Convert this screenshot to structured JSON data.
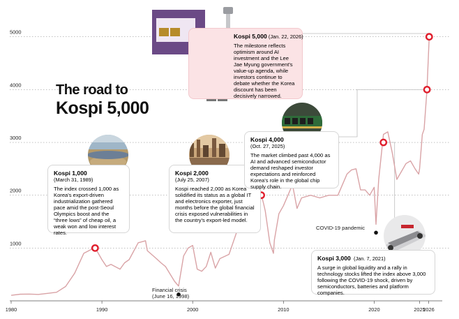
{
  "title": {
    "line1": "The road to",
    "line2": "Kospi 5,000"
  },
  "chart_data": {
    "type": "line",
    "title": "The road to Kospi 5,000",
    "xlim": [
      1980,
      2027.5
    ],
    "ylim": [
      0,
      5300
    ],
    "x_ticks": [
      1980,
      1990,
      2000,
      2010,
      2020,
      2025,
      2026
    ],
    "x_tick_labels": [
      "1980",
      "1990",
      "2000",
      "2010",
      "2020",
      "2025",
      "2026"
    ],
    "y_ticks": [
      1000,
      2000,
      3000,
      4000,
      5000
    ],
    "y_tick_labels": [
      "1000",
      "2000",
      "3000",
      "4000",
      "5000"
    ],
    "grid": "horizontal-dashed",
    "line_color": "#d9a3a6",
    "marker_color": "#e01f2d",
    "series": [
      {
        "x": [
          1980,
          1981,
          1982,
          1983,
          1984,
          1985,
          1986,
          1987,
          1988,
          1989.2,
          1989.5,
          1990,
          1990.5,
          1991,
          1992,
          1992.5,
          1993,
          1994,
          1994.8,
          1995,
          1996,
          1996.5,
          1997,
          1997.5,
          1998,
          1998.45,
          1999,
          1999.5,
          2000,
          2000.5,
          2001,
          2001.5,
          2002,
          2002.5,
          2003,
          2004,
          2005,
          2006,
          2007,
          2007.56,
          2007.8,
          2008,
          2008.5,
          2008.9,
          2009,
          2009.5,
          2010,
          2010.5,
          2011,
          2011.5,
          2012,
          2013,
          2014,
          2015,
          2016,
          2017,
          2017.5,
          2018,
          2018.5,
          2019,
          2019.5,
          2020,
          2020.2,
          2020.5,
          2021.02,
          2021.5,
          2022,
          2022.5,
          2023,
          2023.5,
          2024,
          2024.5,
          2024.9,
          2025,
          2025.3,
          2025.5,
          2025.82,
          2026.06
        ],
        "y": [
          105,
          125,
          128,
          121,
          142,
          163,
          272,
          525,
          900,
          1007,
          930,
          780,
          650,
          690,
          600,
          720,
          780,
          1100,
          1138,
          950,
          800,
          720,
          650,
          510,
          370,
          280,
          850,
          1000,
          1050,
          600,
          560,
          650,
          920,
          620,
          800,
          880,
          1380,
          1430,
          1800,
          2005,
          1850,
          1700,
          1100,
          900,
          1150,
          1650,
          1800,
          2000,
          2200,
          1750,
          1950,
          2000,
          1950,
          2000,
          2000,
          2400,
          2480,
          2500,
          2100,
          2100,
          2000,
          2150,
          1450,
          2300,
          3152,
          3200,
          2800,
          2300,
          2450,
          2600,
          2650,
          2500,
          2400,
          2500,
          3150,
          3250,
          4000,
          5000
        ]
      }
    ],
    "milestones": [
      {
        "label": "Kospi 1,000",
        "date": "(March 31, 1989)",
        "x": 1989.25,
        "y": 1000,
        "text": "The index crossed 1,000 as Korea's export-driven industrialization gathered pace amid the post-Seoul Olympics boost and the “three lows” of cheap oil, a weak won and low interest rates."
      },
      {
        "label": "Kospi 2,000",
        "date": "(July 25, 2007)",
        "x": 2007.56,
        "y": 2000,
        "text": "Kospi reached 2,000 as Korea solidified its status as a global IT and electronics exporter, just months before the global financial crisis exposed vulnerabilities in the country's export-led model."
      },
      {
        "label": "Kospi 3,000",
        "date": "(Jan. 7, 2021)",
        "x": 2021.02,
        "y": 3000,
        "text": "A surge in global liquidity and a rally in technology stocks lifted the index above 3,000 following the COVID-19 shock, driven by semiconductors, batteries and platform companies."
      },
      {
        "label": "Kospi 4,000",
        "date": "(Oct. 27, 2025)",
        "x": 2025.82,
        "y": 4000,
        "text": "The market climbed past 4,000 as AI and advanced semiconductor demand reshaped investor expectations and reinforced Korea's role in the global chip supply chain."
      },
      {
        "label": "Kospi 5,000",
        "date": "(Jan. 22, 2026)",
        "x": 2026.06,
        "y": 5000,
        "text": "The milestone reflects optimism around AI investment and the Lee Jae Myung government's value-up agenda, while investors continue to debate whether the Korea discount has been decisively narrowed."
      }
    ],
    "events": [
      {
        "label": "Financial crisis",
        "date": "(June 16, 1998)",
        "x": 1998.45,
        "y": 280
      },
      {
        "label": "COVID-19 pandemic",
        "x": 2020.2,
        "y": 1450
      }
    ]
  }
}
